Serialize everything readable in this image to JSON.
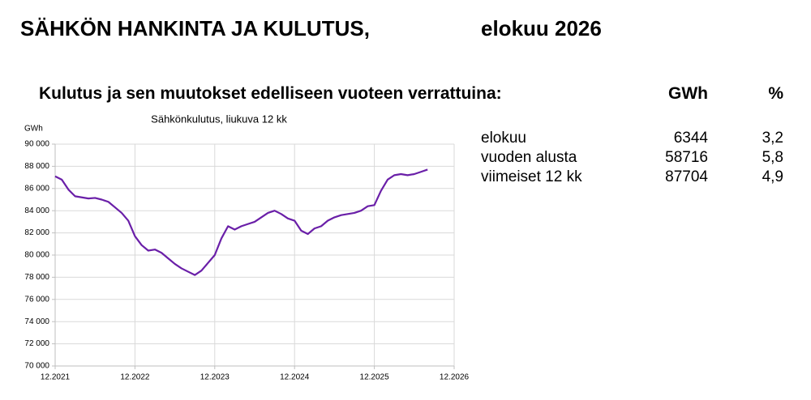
{
  "header": {
    "title": "SÄHKÖN HANKINTA JA KULUTUS,",
    "period": "elokuu 2026"
  },
  "heading": "Kulutus ja sen muutokset edelliseen vuoteen verrattuina:",
  "table": {
    "columns": [
      "GWh",
      "%"
    ],
    "rows": [
      [
        "elokuu",
        6344,
        "3,2"
      ],
      [
        "vuoden alusta",
        58716,
        "5,8"
      ],
      [
        "viimeiset 12 kk",
        87704,
        "4,9"
      ]
    ]
  },
  "chart_data": {
    "type": "line",
    "title": "Sähkönkulutus, liukuva 12 kk",
    "y_label": "GWh",
    "x": [
      "12.2021",
      "1.2022",
      "2.2022",
      "3.2022",
      "4.2022",
      "5.2022",
      "6.2022",
      "7.2022",
      "8.2022",
      "9.2022",
      "10.2022",
      "11.2022",
      "12.2022",
      "1.2023",
      "2.2023",
      "3.2023",
      "4.2023",
      "5.2023",
      "6.2023",
      "7.2023",
      "8.2023",
      "9.2023",
      "10.2023",
      "11.2023",
      "12.2023",
      "1.2024",
      "2.2024",
      "3.2024",
      "4.2024",
      "5.2024",
      "6.2024",
      "7.2024",
      "8.2024",
      "9.2024",
      "10.2024",
      "11.2024",
      "12.2024",
      "1.2025",
      "2.2025",
      "3.2025",
      "4.2025",
      "5.2025",
      "6.2025",
      "7.2025",
      "8.2025",
      "9.2025",
      "10.2025",
      "11.2025",
      "12.2025",
      "1.2026",
      "2.2026",
      "3.2026",
      "4.2026",
      "5.2026",
      "6.2026",
      "7.2026",
      "8.2026"
    ],
    "series": [
      {
        "name": "Sähkönkulutus",
        "color": "#6a1fa8",
        "values": [
          87100,
          86800,
          85900,
          85300,
          85200,
          85100,
          85150,
          85000,
          84800,
          84300,
          83800,
          83100,
          81700,
          80900,
          80400,
          80500,
          80200,
          79700,
          79200,
          78800,
          78500,
          78200,
          78600,
          79300,
          80000,
          81500,
          82600,
          82300,
          82600,
          82800,
          83000,
          83400,
          83800,
          84000,
          83700,
          83300,
          83100,
          82200,
          81900,
          82400,
          82600,
          83100,
          83400,
          83600,
          83700,
          83800,
          84000,
          84400,
          84500,
          85800,
          86800,
          87200,
          87300,
          87200,
          87300,
          87500,
          87704
        ]
      }
    ],
    "xticks": [
      "12.2021",
      "12.2022",
      "12.2023",
      "12.2024",
      "12.2025",
      "12.2026"
    ],
    "ylim": [
      70000,
      90000
    ],
    "yticks": [
      {
        "value": 70000,
        "label": "70 000"
      },
      {
        "value": 72000,
        "label": "72 000"
      },
      {
        "value": 74000,
        "label": "74 000"
      },
      {
        "value": 76000,
        "label": "76 000"
      },
      {
        "value": 78000,
        "label": "78 000"
      },
      {
        "value": 80000,
        "label": "80 000"
      },
      {
        "value": 82000,
        "label": "82 000"
      },
      {
        "value": 84000,
        "label": "84 000"
      },
      {
        "value": 86000,
        "label": "86 000"
      },
      {
        "value": 88000,
        "label": "88 000"
      },
      {
        "value": 90000,
        "label": "90 000"
      }
    ],
    "grid": true
  }
}
